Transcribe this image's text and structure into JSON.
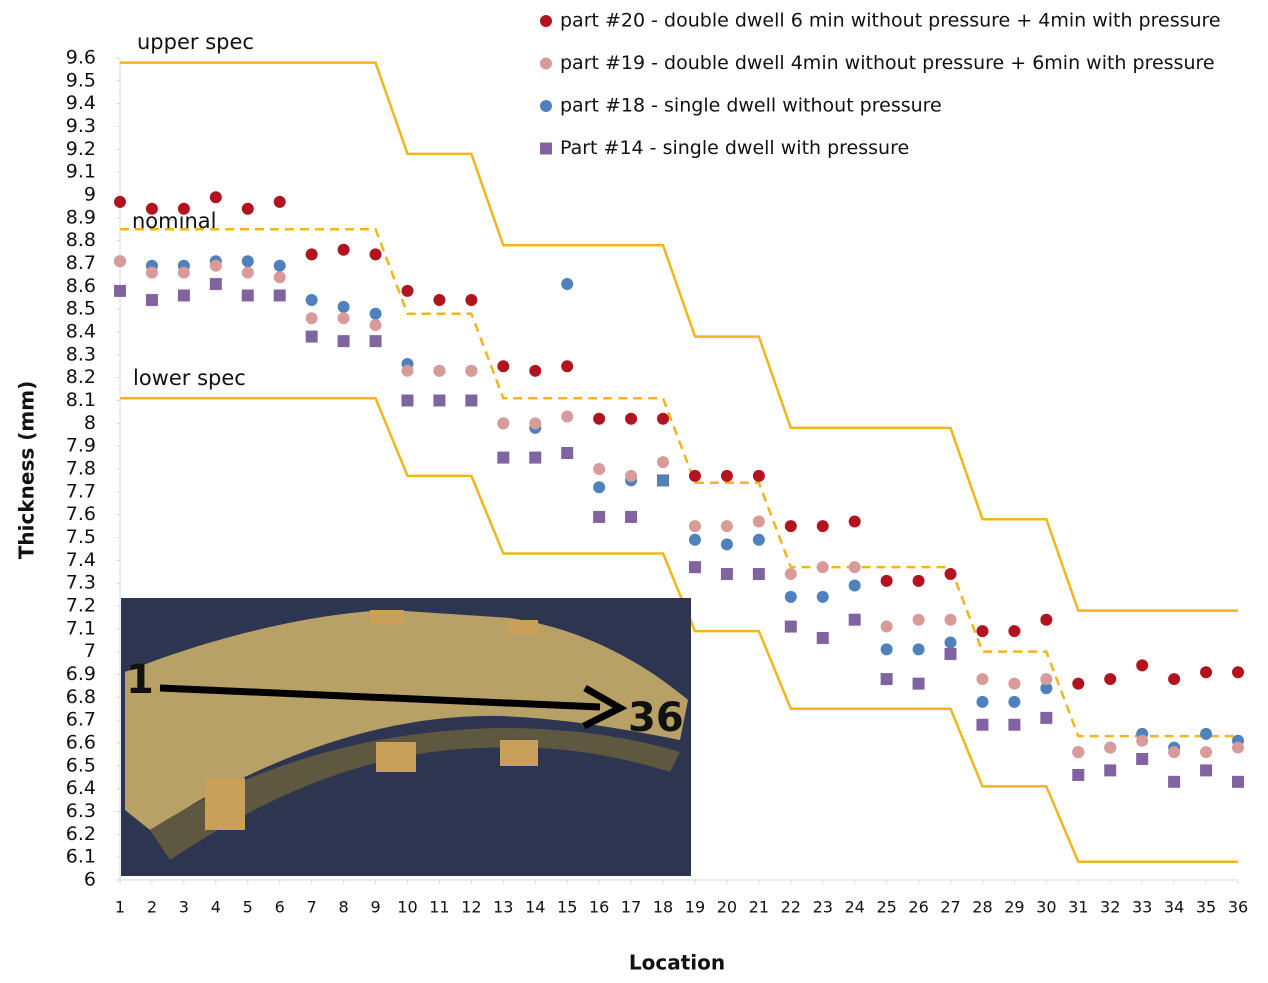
{
  "chart_data": {
    "type": "scatter",
    "x_label": "Location",
    "y_label": "Thickness (mm)",
    "x": [
      1,
      2,
      3,
      4,
      5,
      6,
      7,
      8,
      9,
      10,
      11,
      12,
      13,
      14,
      15,
      16,
      17,
      18,
      19,
      20,
      21,
      22,
      23,
      24,
      25,
      26,
      27,
      28,
      29,
      30,
      31,
      32,
      33,
      34,
      35,
      36
    ],
    "xlim": [
      1,
      36
    ],
    "xticks": [
      1,
      2,
      3,
      4,
      5,
      6,
      7,
      8,
      9,
      10,
      11,
      12,
      13,
      14,
      15,
      16,
      17,
      18,
      19,
      20,
      21,
      22,
      23,
      24,
      25,
      26,
      27,
      28,
      29,
      30,
      31,
      32,
      33,
      34,
      35,
      36
    ],
    "ylim": [
      6,
      9.6
    ],
    "yticks": [
      6,
      6.1,
      6.2,
      6.3,
      6.4,
      6.5,
      6.6,
      6.7,
      6.8,
      6.9,
      7,
      7.1,
      7.2,
      7.3,
      7.4,
      7.5,
      7.6,
      7.7,
      7.8,
      7.9,
      8,
      8.1,
      8.2,
      8.3,
      8.4,
      8.5,
      8.6,
      8.7,
      8.8,
      8.9,
      9,
      9.1,
      9.2,
      9.3,
      9.4,
      9.5,
      9.6
    ],
    "grid": false,
    "legend": "top-right",
    "series": [
      {
        "name": "part #20 - double dwell 6 min without pressure + 4min with pressure",
        "color": "#b3121f",
        "marker": "circle",
        "values": [
          8.97,
          8.94,
          8.94,
          8.99,
          8.94,
          8.97,
          8.74,
          8.76,
          8.74,
          8.58,
          8.54,
          8.54,
          8.25,
          8.23,
          8.25,
          8.02,
          8.02,
          8.02,
          7.77,
          7.77,
          7.77,
          7.55,
          7.55,
          7.57,
          7.31,
          7.31,
          7.34,
          7.09,
          7.09,
          7.14,
          6.86,
          6.88,
          6.94,
          6.88,
          6.91,
          6.91
        ]
      },
      {
        "name": "part #19 - double dwell 4min without pressure + 6min with pressure",
        "color": "#d99a9a",
        "marker": "circle",
        "values": [
          8.71,
          8.66,
          8.66,
          8.69,
          8.66,
          8.64,
          8.46,
          8.46,
          8.43,
          8.23,
          8.23,
          8.23,
          8.0,
          8.0,
          8.03,
          7.8,
          7.77,
          7.83,
          7.55,
          7.55,
          7.57,
          7.34,
          7.37,
          7.37,
          7.11,
          7.14,
          7.14,
          6.88,
          6.86,
          6.88,
          6.56,
          6.58,
          6.61,
          6.56,
          6.56,
          6.58
        ]
      },
      {
        "name": "part #18 - single dwell without pressure",
        "color": "#4f81bd",
        "marker": "circle",
        "values": [
          8.71,
          8.69,
          8.69,
          8.71,
          8.71,
          8.69,
          8.54,
          8.51,
          8.48,
          8.26,
          8.23,
          8.23,
          8.0,
          7.98,
          8.61,
          7.72,
          7.75,
          7.75,
          7.49,
          7.47,
          7.49,
          7.24,
          7.24,
          7.29,
          7.01,
          7.01,
          7.04,
          6.78,
          6.78,
          6.84,
          6.56,
          6.58,
          6.64,
          6.58,
          6.64,
          6.61
        ]
      },
      {
        "name": "Part #14 - single dwell with pressure",
        "color": "#8064a2",
        "marker": "square",
        "values": [
          8.58,
          8.54,
          8.56,
          8.61,
          8.56,
          8.56,
          8.38,
          8.36,
          8.36,
          8.1,
          8.1,
          8.1,
          7.85,
          7.85,
          7.87,
          7.59,
          7.59,
          7.75,
          7.37,
          7.34,
          7.34,
          7.11,
          7.06,
          7.14,
          6.88,
          6.86,
          6.99,
          6.68,
          6.68,
          6.71,
          6.46,
          6.48,
          6.53,
          6.43,
          6.48,
          6.43
        ]
      }
    ],
    "spec_lines": [
      {
        "name": "upper spec",
        "color": "#f2b51c",
        "dashed": false,
        "values": [
          9.58,
          9.58,
          9.58,
          9.58,
          9.58,
          9.58,
          9.58,
          9.58,
          9.58,
          9.18,
          9.18,
          9.18,
          8.78,
          8.78,
          8.78,
          8.78,
          8.78,
          8.78,
          8.38,
          8.38,
          8.38,
          7.98,
          7.98,
          7.98,
          7.98,
          7.98,
          7.98,
          7.58,
          7.58,
          7.58,
          7.18,
          7.18,
          7.18,
          7.18,
          7.18,
          7.18
        ]
      },
      {
        "name": "nominal",
        "color": "#f2b51c",
        "dashed": true,
        "values": [
          8.85,
          8.85,
          8.85,
          8.85,
          8.85,
          8.85,
          8.85,
          8.85,
          8.85,
          8.48,
          8.48,
          8.48,
          8.11,
          8.11,
          8.11,
          8.11,
          8.11,
          8.11,
          7.74,
          7.74,
          7.74,
          7.37,
          7.37,
          7.37,
          7.37,
          7.37,
          7.37,
          7.0,
          7.0,
          7.0,
          6.63,
          6.63,
          6.63,
          6.63,
          6.63,
          6.63
        ]
      },
      {
        "name": "lower spec",
        "color": "#f2b51c",
        "dashed": false,
        "values": [
          8.11,
          8.11,
          8.11,
          8.11,
          8.11,
          8.11,
          8.11,
          8.11,
          8.11,
          7.77,
          7.77,
          7.77,
          7.43,
          7.43,
          7.43,
          7.43,
          7.43,
          7.43,
          7.09,
          7.09,
          7.09,
          6.75,
          6.75,
          6.75,
          6.75,
          6.75,
          6.75,
          6.41,
          6.41,
          6.41,
          6.08,
          6.08,
          6.08,
          6.08,
          6.08,
          6.08
        ]
      }
    ],
    "inset_labels": [
      "1",
      "36"
    ]
  }
}
